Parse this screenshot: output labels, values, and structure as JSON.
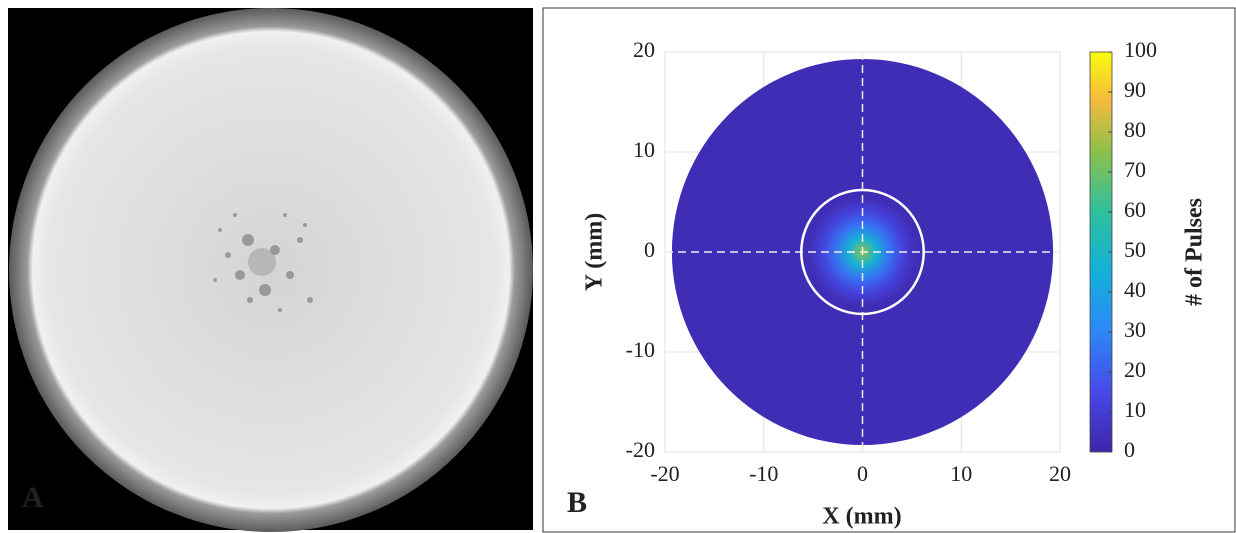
{
  "panel_a": {
    "label": "A"
  },
  "chart_data": {
    "type": "heatmap",
    "label": "B",
    "xlabel": "X (mm)",
    "ylabel": "Y (mm)",
    "xlim": [
      -20,
      20
    ],
    "ylim": [
      -20,
      20
    ],
    "xticks": [
      -20,
      -10,
      0,
      10,
      20
    ],
    "yticks": [
      -20,
      -10,
      0,
      10,
      20
    ],
    "grid": true,
    "disk_radius": 19.3,
    "circle_radius": 6.2,
    "peak_value": 75,
    "background_value": 3,
    "colorbar_label": "# of Pulses",
    "clim": [
      0,
      100
    ],
    "cticks": [
      0,
      10,
      20,
      30,
      40,
      50,
      60,
      70,
      80,
      90,
      100
    ]
  }
}
